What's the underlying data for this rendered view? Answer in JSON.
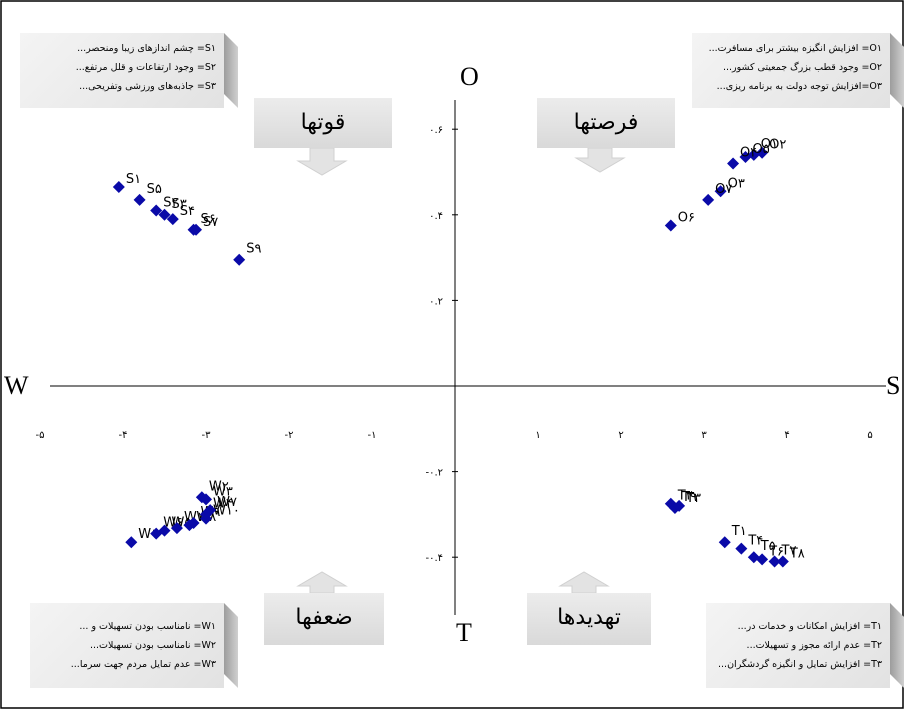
{
  "chart_data": {
    "type": "scatter",
    "title": "",
    "axis_letters": {
      "left": "W",
      "right": "S",
      "top": "O",
      "bottom": "T"
    },
    "x_ticks": [
      "-۵",
      "-۴",
      "-۳",
      "-۲",
      "-۱",
      "۱",
      "۲",
      "۳",
      "۴",
      "۵"
    ],
    "x_tick_values": [
      -5,
      -4,
      -3,
      -2,
      -1,
      1,
      2,
      3,
      4,
      5
    ],
    "y_ticks": [
      "۰.۶",
      "۰.۴",
      "۰.۲",
      "-۰.۲",
      "-۰.۴"
    ],
    "y_tick_values": [
      0.6,
      0.4,
      0.2,
      -0.2,
      -0.4
    ],
    "xlim": [
      -5,
      5
    ],
    "ylim": [
      -0.5,
      0.65
    ],
    "grid": false,
    "marker_color": "#0a0aa8",
    "quadrant_titles": {
      "strengths": "قوتها",
      "opportunities": "فرصتها",
      "weaknesses": "ضعفها",
      "threats": "تهدیدها"
    },
    "series": [
      {
        "group": "S",
        "points": [
          {
            "label": "S۱",
            "x": -4.05,
            "y": 0.465
          },
          {
            "label": "S۵",
            "x": -3.8,
            "y": 0.435
          },
          {
            "label": "S۲",
            "x": -3.6,
            "y": 0.41
          },
          {
            "label": "S۳",
            "x": -3.5,
            "y": 0.4
          },
          {
            "label": "S۴",
            "x": -3.4,
            "y": 0.39
          },
          {
            "label": "S۶",
            "x": -3.15,
            "y": 0.365
          },
          {
            "label": "S۷",
            "x": -3.12,
            "y": 0.365
          },
          {
            "label": "S۹",
            "x": -2.6,
            "y": 0.295
          }
        ]
      },
      {
        "group": "O",
        "points": [
          {
            "label": "O۲",
            "x": 3.7,
            "y": 0.545
          },
          {
            "label": "O۱",
            "x": 3.6,
            "y": 0.54
          },
          {
            "label": "O۵",
            "x": 3.5,
            "y": 0.535
          },
          {
            "label": "O۴",
            "x": 3.35,
            "y": 0.52
          },
          {
            "label": "O۳",
            "x": 3.2,
            "y": 0.455
          },
          {
            "label": "O۷",
            "x": 3.05,
            "y": 0.435
          },
          {
            "label": "O۶",
            "x": 2.6,
            "y": 0.375
          }
        ]
      },
      {
        "group": "W",
        "points": [
          {
            "label": "W۱",
            "x": -3.9,
            "y": -0.365
          },
          {
            "label": "W۶",
            "x": -3.6,
            "y": -0.345
          },
          {
            "label": "W۵",
            "x": -3.5,
            "y": -0.338
          },
          {
            "label": "W۱۱",
            "x": -3.35,
            "y": -0.332
          },
          {
            "label": "W۸",
            "x": -3.2,
            "y": -0.325
          },
          {
            "label": "W۹",
            "x": -3.15,
            "y": -0.32
          },
          {
            "label": "W۱۰",
            "x": -3.0,
            "y": -0.31
          },
          {
            "label": "W۴",
            "x": -3.0,
            "y": -0.3
          },
          {
            "label": "W۷",
            "x": -2.95,
            "y": -0.29
          },
          {
            "label": "W۲",
            "x": -3.05,
            "y": -0.26
          },
          {
            "label": "W۳",
            "x": -3.0,
            "y": -0.265
          }
        ]
      },
      {
        "group": "T",
        "points": [
          {
            "label": "T۲",
            "x": 2.6,
            "y": -0.275
          },
          {
            "label": "T۹",
            "x": 2.65,
            "y": -0.285
          },
          {
            "label": "T۳",
            "x": 2.7,
            "y": -0.28
          },
          {
            "label": "T۱",
            "x": 3.25,
            "y": -0.365
          },
          {
            "label": "T۴",
            "x": 3.45,
            "y": -0.38
          },
          {
            "label": "T۵",
            "x": 3.6,
            "y": -0.4
          },
          {
            "label": "T۶",
            "x": 3.7,
            "y": -0.405
          },
          {
            "label": "T۷",
            "x": 3.85,
            "y": -0.41
          },
          {
            "label": "T۸",
            "x": 3.95,
            "y": -0.41
          }
        ]
      }
    ]
  },
  "legends": {
    "strengths": [
      "S۱= چشم اندازهای زیبا ومنحصر...",
      "S۲= وجود ارتفاعات و قلل مرتفع...",
      "S۳= جاذبه‌های ورزشی وتفریحی..."
    ],
    "opportunities": [
      "O۱= افزایش انگیزه بیشتر برای مسافرت...",
      "O۲= وجود قطب بزرگ جمعیتی کشور...",
      "O۳=افزایش توجه دولت به برنامه ریزی..."
    ],
    "weaknesses": [
      "W۱= نامناسب بودن تسهیلات و ...",
      "W۲= نامناسب بودن  تسهیلات...",
      "W۳= عدم تمایل مردم جهت سرما..."
    ],
    "threats": [
      "T۱= افزایش امکانات و خدمات  در...",
      "T۲= عدم ارائه مجوز و تسهیلات...",
      "T۳= افزایش تمایل و انگیزه گردشگران..."
    ]
  }
}
